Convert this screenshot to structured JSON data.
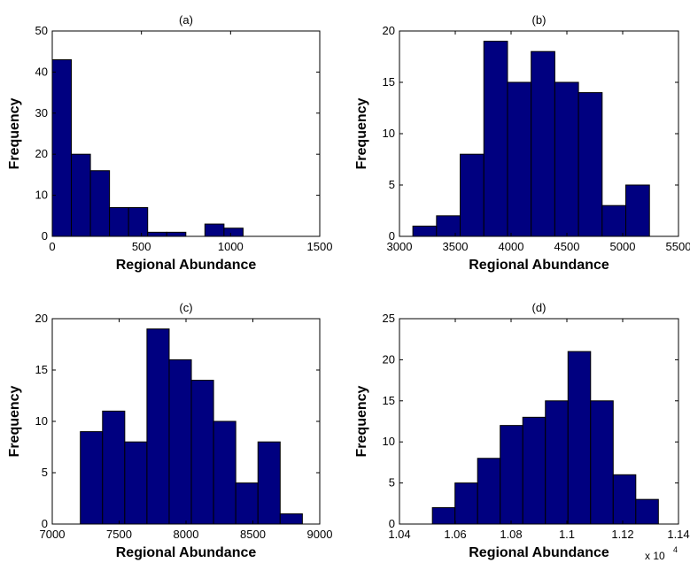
{
  "chart_data": [
    {
      "type": "bar",
      "title": "(a)",
      "xlabel": "Regional Abundance",
      "ylabel": "Frequency",
      "xlim": [
        0,
        1500
      ],
      "ylim": [
        0,
        50
      ],
      "xticks": [
        0,
        500,
        1000,
        1500
      ],
      "yticks": [
        0,
        10,
        20,
        30,
        40,
        50
      ],
      "bin_start": 0,
      "bin_width": 107,
      "values": [
        43,
        20,
        16,
        7,
        7,
        1,
        1,
        0,
        3,
        2
      ],
      "bar_color": "#000080"
    },
    {
      "type": "bar",
      "title": "(b)",
      "xlabel": "Regional Abundance",
      "ylabel": "Frequency",
      "xlim": [
        3000,
        5500
      ],
      "ylim": [
        0,
        20
      ],
      "xticks": [
        3000,
        3500,
        4000,
        4500,
        5000,
        5500
      ],
      "yticks": [
        0,
        5,
        10,
        15,
        20
      ],
      "bin_start": 3120,
      "bin_width": 212,
      "values": [
        1,
        2,
        8,
        19,
        15,
        18,
        15,
        14,
        3,
        5
      ],
      "bar_color": "#000080"
    },
    {
      "type": "bar",
      "title": "(c)",
      "xlabel": "Regional Abundance",
      "ylabel": "Frequency",
      "xlim": [
        7000,
        9000
      ],
      "ylim": [
        0,
        20
      ],
      "xticks": [
        7000,
        7500,
        8000,
        8500,
        9000
      ],
      "yticks": [
        0,
        5,
        10,
        15,
        20
      ],
      "bin_start": 7210,
      "bin_width": 166,
      "values": [
        9,
        11,
        8,
        19,
        16,
        14,
        10,
        4,
        8,
        1
      ],
      "bar_color": "#000080"
    },
    {
      "type": "bar",
      "title": "(d)",
      "xlabel": "Regional Abundance",
      "ylabel": "Frequency",
      "xlim": [
        1.04,
        1.14
      ],
      "ylim": [
        0,
        25
      ],
      "xticks": [
        1.04,
        1.06,
        1.08,
        1.1,
        1.12,
        1.14
      ],
      "xtick_labels": [
        "1.04",
        "1.06",
        "1.08",
        "1.1",
        "1.12",
        "1.14"
      ],
      "x_multiplier_base": "x 10",
      "x_multiplier_exp": "4",
      "yticks": [
        0,
        5,
        10,
        15,
        20,
        25
      ],
      "bin_start": 1.0518,
      "bin_width": 0.0081,
      "values": [
        2,
        5,
        8,
        12,
        13,
        15,
        21,
        15,
        6,
        3
      ],
      "bar_color": "#000080"
    }
  ]
}
